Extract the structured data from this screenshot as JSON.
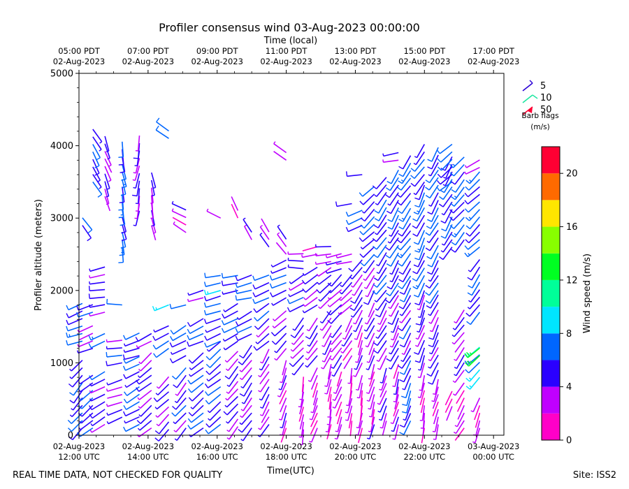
{
  "chart_data": {
    "type": "wind-barb-profile",
    "title": "Profiler consensus wind 03-Aug-2023 00:00:00",
    "xlabel": "Time(UTC)",
    "xlabel_top": "Time (local)",
    "ylabel": "Profiler altitude (meters)",
    "ylim": [
      0,
      5000
    ],
    "xlim_hours_utc": [
      12.0,
      24.3
    ],
    "yticks": [
      "0",
      "1000",
      "2000",
      "3000",
      "4000",
      "5000"
    ],
    "xticks_bottom": [
      {
        "hour": 12,
        "time": "02-Aug-2023",
        "zone": "12:00 UTC"
      },
      {
        "hour": 14,
        "time": "02-Aug-2023",
        "zone": "14:00 UTC"
      },
      {
        "hour": 16,
        "time": "02-Aug-2023",
        "zone": "16:00 UTC"
      },
      {
        "hour": 18,
        "time": "02-Aug-2023",
        "zone": "18:00 UTC"
      },
      {
        "hour": 20,
        "time": "02-Aug-2023",
        "zone": "20:00 UTC"
      },
      {
        "hour": 22,
        "time": "02-Aug-2023",
        "zone": "22:00 UTC"
      },
      {
        "hour": 24,
        "time": "03-Aug-2023",
        "zone": "00:00 UTC"
      }
    ],
    "xticks_top": [
      {
        "hour": 12,
        "time": "05:00 PDT",
        "date": "02-Aug-2023"
      },
      {
        "hour": 14,
        "time": "07:00 PDT",
        "date": "02-Aug-2023"
      },
      {
        "hour": 16,
        "time": "09:00 PDT",
        "date": "02-Aug-2023"
      },
      {
        "hour": 18,
        "time": "11:00 PDT",
        "date": "02-Aug-2023"
      },
      {
        "hour": 20,
        "time": "13:00 PDT",
        "date": "02-Aug-2023"
      },
      {
        "hour": 22,
        "time": "15:00 PDT",
        "date": "02-Aug-2023"
      },
      {
        "hour": 24,
        "time": "17:00 PDT",
        "date": "02-Aug-2023"
      }
    ],
    "barb_legend": {
      "items": [
        {
          "label": "5",
          "color": "#2a00d5"
        },
        {
          "label": "10",
          "color": "#1ee6a0"
        },
        {
          "label": "50",
          "color": "#ff0033"
        }
      ],
      "caption_line1": "Barb flags",
      "caption_line2": "(m/s)"
    },
    "colorbar": {
      "label": "Wind speed (m/s)",
      "range": [
        0,
        22
      ],
      "ticks": [
        "0",
        "4",
        "8",
        "12",
        "16",
        "20"
      ],
      "bins": [
        {
          "from": 0,
          "to": 2,
          "color": "#ff00c8"
        },
        {
          "from": 2,
          "to": 4,
          "color": "#c000ff"
        },
        {
          "from": 4,
          "to": 6,
          "color": "#2a00ff"
        },
        {
          "from": 6,
          "to": 8,
          "color": "#0066ff"
        },
        {
          "from": 8,
          "to": 10,
          "color": "#00e5ff"
        },
        {
          "from": 10,
          "to": 12,
          "color": "#00ff99"
        },
        {
          "from": 12,
          "to": 14,
          "color": "#00ff22"
        },
        {
          "from": 14,
          "to": 16,
          "color": "#88ff00"
        },
        {
          "from": 16,
          "to": 18,
          "color": "#ffe600"
        },
        {
          "from": 18,
          "to": 20,
          "color": "#ff6a00"
        },
        {
          "from": 20,
          "to": 22,
          "color": "#ff0033"
        }
      ]
    },
    "columns": [
      {
        "t": 12.1,
        "segments": [
          [
            100,
            1100,
            220,
            5.5
          ],
          [
            1300,
            1900,
            250,
            6.5
          ],
          [
            2900,
            3100,
            140,
            5.0
          ]
        ]
      },
      {
        "t": 12.4,
        "segments": [
          [
            100,
            900,
            230,
            5.5
          ],
          [
            1200,
            1600,
            250,
            3.5
          ],
          [
            1700,
            1900,
            255,
            6.0
          ],
          [
            3500,
            4300,
            150,
            5.5
          ]
        ]
      },
      {
        "t": 12.75,
        "segments": [
          [
            150,
            900,
            240,
            5.0
          ],
          [
            1300,
            1500,
            250,
            8.0
          ],
          [
            1700,
            2400,
            260,
            5.0
          ],
          [
            3300,
            4200,
            160,
            3.5
          ]
        ]
      },
      {
        "t": 13.25,
        "segments": [
          [
            250,
            800,
            250,
            3.5
          ],
          [
            1000,
            1400,
            260,
            5.0
          ],
          [
            1800,
            1900,
            270,
            6.5
          ],
          [
            2600,
            4100,
            170,
            6.5
          ]
        ]
      },
      {
        "t": 13.75,
        "segments": [
          [
            150,
            1100,
            240,
            6.0
          ],
          [
            1100,
            1500,
            250,
            5.5
          ],
          [
            3100,
            4200,
            190,
            4.0
          ]
        ]
      },
      {
        "t": 14.1,
        "segments": [
          [
            100,
            1200,
            230,
            4.5
          ],
          [
            1300,
            1500,
            245,
            5.0
          ],
          [
            2900,
            3700,
            170,
            3.5
          ]
        ]
      },
      {
        "t": 14.6,
        "segments": [
          [
            80,
            900,
            225,
            4.5
          ],
          [
            1200,
            1600,
            240,
            6.0
          ],
          [
            1800,
            1900,
            250,
            7.0
          ],
          [
            4100,
            4250,
            300,
            5.5
          ]
        ]
      },
      {
        "t": 15.1,
        "segments": [
          [
            100,
            1000,
            220,
            5.0
          ],
          [
            1100,
            1600,
            240,
            5.5
          ],
          [
            1800,
            1900,
            250,
            7.0
          ],
          [
            2800,
            3200,
            300,
            3.0
          ]
        ]
      },
      {
        "t": 15.6,
        "segments": [
          [
            100,
            1200,
            230,
            5.5
          ],
          [
            1300,
            1700,
            245,
            6.0
          ],
          [
            1900,
            2100,
            255,
            4.0
          ]
        ]
      },
      {
        "t": 16.1,
        "segments": [
          [
            150,
            1300,
            230,
            5.5
          ],
          [
            1300,
            2000,
            250,
            6.0
          ],
          [
            2000,
            2300,
            260,
            7.5
          ],
          [
            3000,
            3100,
            300,
            2.5
          ]
        ]
      },
      {
        "t": 16.6,
        "segments": [
          [
            120,
            1200,
            220,
            4.0
          ],
          [
            1300,
            1900,
            240,
            5.5
          ],
          [
            2000,
            2300,
            255,
            6.0
          ],
          [
            3000,
            3200,
            330,
            3.0
          ]
        ]
      },
      {
        "t": 17.0,
        "segments": [
          [
            100,
            1300,
            215,
            4.5
          ],
          [
            1400,
            1800,
            240,
            5.0
          ],
          [
            1900,
            2300,
            255,
            6.0
          ],
          [
            2700,
            2900,
            330,
            3.0
          ]
        ]
      },
      {
        "t": 17.5,
        "segments": [
          [
            150,
            1200,
            210,
            3.5
          ],
          [
            1300,
            1900,
            230,
            5.0
          ],
          [
            1900,
            2300,
            250,
            6.5
          ],
          [
            2600,
            2900,
            330,
            3.5
          ]
        ]
      },
      {
        "t": 18.0,
        "segments": [
          [
            100,
            1100,
            200,
            3.0
          ],
          [
            1200,
            1800,
            225,
            4.5
          ],
          [
            1900,
            2500,
            245,
            5.5
          ],
          [
            2500,
            2800,
            320,
            3.5
          ],
          [
            3800,
            4000,
            300,
            3.5
          ]
        ]
      },
      {
        "t": 18.5,
        "segments": [
          [
            80,
            900,
            190,
            2.5
          ],
          [
            1000,
            1700,
            220,
            4.0
          ],
          [
            1800,
            2300,
            240,
            5.0
          ],
          [
            2300,
            2600,
            270,
            3.5
          ]
        ]
      },
      {
        "t": 18.9,
        "segments": [
          [
            100,
            1000,
            200,
            2.5
          ],
          [
            1100,
            1700,
            215,
            4.0
          ],
          [
            1800,
            2400,
            235,
            4.5
          ],
          [
            2500,
            2700,
            260,
            3.0
          ]
        ]
      },
      {
        "t": 19.3,
        "segments": [
          [
            150,
            1000,
            190,
            2.5
          ],
          [
            1100,
            1800,
            210,
            3.5
          ],
          [
            1900,
            2400,
            230,
            4.5
          ],
          [
            2400,
            2700,
            265,
            3.5
          ]
        ]
      },
      {
        "t": 19.6,
        "segments": [
          [
            150,
            900,
            200,
            2.5
          ],
          [
            1000,
            1600,
            215,
            3.5
          ],
          [
            1700,
            2300,
            225,
            4.5
          ],
          [
            2300,
            2600,
            250,
            3.5
          ]
        ]
      },
      {
        "t": 19.9,
        "segments": [
          [
            200,
            1000,
            190,
            2.5
          ],
          [
            1100,
            1700,
            210,
            3.0
          ],
          [
            1800,
            2300,
            225,
            3.5
          ],
          [
            2400,
            2600,
            255,
            4.0
          ],
          [
            3200,
            3300,
            260,
            6.0
          ]
        ]
      },
      {
        "t": 20.2,
        "segments": [
          [
            100,
            900,
            190,
            2.0
          ],
          [
            1000,
            1800,
            200,
            3.0
          ],
          [
            1800,
            2500,
            215,
            4.5
          ],
          [
            2900,
            3200,
            250,
            6.0
          ],
          [
            3600,
            3700,
            270,
            5.5
          ]
        ]
      },
      {
        "t": 20.55,
        "segments": [
          [
            150,
            1000,
            195,
            3.0
          ],
          [
            1100,
            1900,
            205,
            3.5
          ],
          [
            2000,
            2500,
            210,
            4.0
          ],
          [
            2500,
            3500,
            225,
            5.5
          ]
        ]
      },
      {
        "t": 20.9,
        "segments": [
          [
            200,
            1000,
            200,
            3.5
          ],
          [
            1100,
            1900,
            210,
            4.5
          ],
          [
            1900,
            3600,
            215,
            5.5
          ]
        ]
      },
      {
        "t": 21.25,
        "segments": [
          [
            150,
            1000,
            195,
            3.0
          ],
          [
            1100,
            2000,
            205,
            4.0
          ],
          [
            2000,
            3700,
            210,
            5.5
          ],
          [
            3800,
            4000,
            260,
            3.0
          ]
        ]
      },
      {
        "t": 21.6,
        "segments": [
          [
            200,
            1100,
            200,
            6.0
          ],
          [
            1100,
            2200,
            210,
            5.0
          ],
          [
            2200,
            3900,
            215,
            6.5
          ]
        ]
      },
      {
        "t": 22.0,
        "segments": [
          [
            100,
            900,
            190,
            2.5
          ],
          [
            1000,
            2000,
            200,
            4.5
          ],
          [
            2000,
            3500,
            205,
            6.5
          ],
          [
            3500,
            4050,
            215,
            5.5
          ]
        ]
      },
      {
        "t": 22.4,
        "segments": [
          [
            150,
            800,
            195,
            2.5
          ],
          [
            900,
            2000,
            205,
            4.5
          ],
          [
            2000,
            4000,
            210,
            6.0
          ]
        ]
      },
      {
        "t": 22.8,
        "segments": [
          [
            400,
            700,
            200,
            2.5
          ],
          [
            2600,
            3900,
            210,
            5.5
          ],
          [
            3500,
            4100,
            230,
            6.5
          ]
        ]
      },
      {
        "t": 23.15,
        "segments": [
          [
            100,
            800,
            210,
            2.5
          ],
          [
            900,
            1800,
            215,
            3.5
          ],
          [
            2700,
            3900,
            220,
            6.5
          ]
        ]
      },
      {
        "t": 23.6,
        "segments": [
          [
            100,
            600,
            200,
            2.5
          ],
          [
            800,
            1300,
            225,
            8.5
          ],
          [
            1100,
            1250,
            230,
            12.5
          ],
          [
            1700,
            2500,
            215,
            5.5
          ],
          [
            2600,
            3700,
            225,
            6.5
          ],
          [
            3700,
            3900,
            240,
            2.5
          ]
        ]
      }
    ]
  },
  "footer": {
    "disclaimer": "REAL TIME DATA, NOT CHECKED FOR QUALITY",
    "site": "Site: ISS2"
  }
}
